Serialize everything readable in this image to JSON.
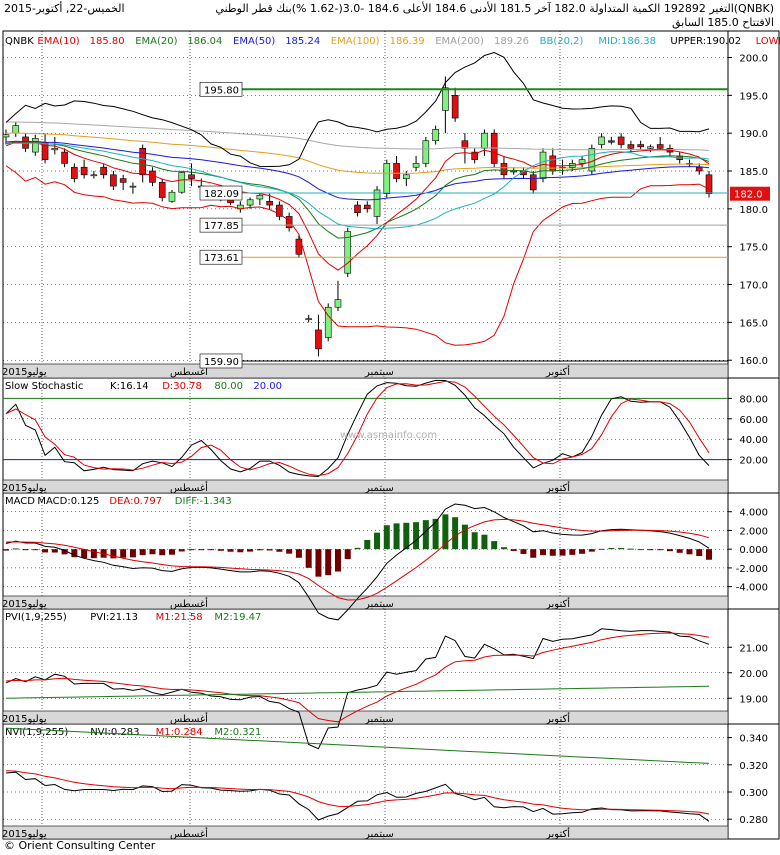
{
  "header": {
    "date": "الخميس-22, أكتوبر-2015",
    "stats": "التغير 192892 الكمية المتداولة 182.0 آخر 181.5 الأدنى 184.6 الأعلى 184.6 -3.0(-1.62 %)",
    "stock": "بنك قطر الوطني(QNBK)",
    "prev": "السابق",
    "open": "الافتتاح 185.0"
  },
  "legend_main": [
    {
      "text": "QNBK",
      "color": "#000000"
    },
    {
      "text": "EMA(10)",
      "color": "#e00000"
    },
    {
      "text": "185.80",
      "color": "#e00000"
    },
    {
      "text": "EMA(20)",
      "color": "#1a7a1a"
    },
    {
      "text": "186.04",
      "color": "#1a7a1a"
    },
    {
      "text": "EMA(50)",
      "color": "#1a1adc"
    },
    {
      "text": "185.24",
      "color": "#1a1adc"
    },
    {
      "text": "EMA(100)",
      "color": "#e0a020"
    },
    {
      "text": "186.39",
      "color": "#e0a020"
    },
    {
      "text": "EMA(200)",
      "color": "#a0a0a0"
    },
    {
      "text": "189.26",
      "color": "#a0a0a0"
    },
    {
      "text": "BB(20,2)",
      "color": "#20b0c0"
    },
    {
      "text": "MID:186.38",
      "color": "#20b0c0"
    },
    {
      "text": "UPPER:190.02",
      "color": "#000000"
    },
    {
      "text": "LOWER:",
      "color": "#e00000"
    }
  ],
  "legend_stoch": [
    {
      "text": "Slow Stochastic",
      "color": "#000000"
    },
    {
      "text": "K:16.14",
      "color": "#000000"
    },
    {
      "text": "D:30.78",
      "color": "#e00000"
    },
    {
      "text": "80.00",
      "color": "#1a7a1a"
    },
    {
      "text": "20.00",
      "color": "#1a1adc"
    }
  ],
  "legend_macd": [
    {
      "text": "MACD",
      "color": "#000000"
    },
    {
      "text": "MACD:0.125",
      "color": "#000000"
    },
    {
      "text": "DEA:0.797",
      "color": "#e00000"
    },
    {
      "text": "DIFF:-1.343",
      "color": "#1a7a1a"
    }
  ],
  "legend_pvi": [
    {
      "text": "PVI(1,9,255)",
      "color": "#000000"
    },
    {
      "text": "PVI:21.13",
      "color": "#000000"
    },
    {
      "text": "M1:21.58",
      "color": "#e00000"
    },
    {
      "text": "M2:19.47",
      "color": "#1a7a1a"
    }
  ],
  "legend_nvi": [
    {
      "text": "NVI(1,9,255)",
      "color": "#000000"
    },
    {
      "text": "NVI:0.283",
      "color": "#000000"
    },
    {
      "text": "M1:0.284",
      "color": "#e00000"
    },
    {
      "text": "M2:0.321",
      "color": "#1a7a1a"
    }
  ],
  "watermark": "www.asmainfo.com",
  "footer": "© Orient Consulting Center",
  "chart_data": {
    "type": "candlestick",
    "x_labels": [
      "يوليو2015",
      "أغسطس",
      "سبتمبر",
      "أكتوبر"
    ],
    "main": {
      "ylim": [
        159.5,
        203.5
      ],
      "yticks": [
        160.0,
        165.0,
        170.0,
        175.0,
        180.0,
        185.0,
        190.0,
        195.0,
        200.0
      ],
      "last_price": "182.0",
      "levels": [
        {
          "label": "195.80",
          "value": 195.8,
          "color": "#1a8a1a"
        },
        {
          "label": "182.09",
          "value": 182.09,
          "color": "#20b0c0"
        },
        {
          "label": "177.85",
          "value": 177.85,
          "color": "#a0a0a0"
        },
        {
          "label": "173.61",
          "value": 173.61,
          "color": "#e0a020"
        },
        {
          "label": "159.90",
          "value": 159.9,
          "color": "#000000"
        }
      ],
      "candles": [
        [
          189.5,
          190.5,
          188.5,
          189.8
        ],
        [
          190.0,
          191.5,
          189.5,
          191.0
        ],
        [
          189.5,
          190.0,
          187.5,
          188.0
        ],
        [
          187.5,
          189.8,
          187.0,
          189.3
        ],
        [
          188.8,
          190.0,
          186.0,
          186.5
        ],
        [
          187.8,
          189.5,
          187.2,
          188.0
        ],
        [
          187.5,
          188.0,
          185.5,
          186.0
        ],
        [
          185.5,
          186.0,
          183.5,
          184.0
        ],
        [
          185.5,
          186.5,
          184.0,
          184.5
        ],
        [
          184.5,
          185.0,
          184.0,
          184.5
        ],
        [
          185.5,
          186.0,
          184.0,
          184.5
        ],
        [
          184.5,
          185.0,
          182.5,
          183.0
        ],
        [
          184.0,
          184.5,
          182.5,
          183.5
        ],
        [
          183.0,
          183.5,
          182.0,
          183.0
        ],
        [
          188.0,
          188.5,
          183.5,
          184.5
        ],
        [
          185.0,
          185.5,
          183.0,
          183.5
        ],
        [
          183.5,
          184.0,
          181.0,
          181.5
        ],
        [
          181.0,
          182.5,
          180.8,
          182.2
        ],
        [
          182.2,
          185.0,
          182.0,
          184.8
        ],
        [
          184.5,
          186.0,
          183.0,
          184.0
        ],
        [
          183.0,
          184.0,
          182.0,
          183.0
        ],
        [
          182.5,
          183.0,
          182.0,
          182.3
        ],
        [
          182.5,
          183.0,
          181.0,
          181.5
        ],
        [
          181.5,
          182.0,
          180.5,
          180.8
        ],
        [
          180.0,
          181.0,
          179.5,
          180.5
        ],
        [
          180.5,
          181.5,
          180.0,
          181.2
        ],
        [
          181.3,
          182.0,
          180.5,
          181.8
        ],
        [
          181.0,
          182.0,
          180.0,
          180.5
        ],
        [
          180.5,
          181.0,
          178.5,
          179.0
        ],
        [
          179.0,
          179.5,
          177.0,
          177.5
        ],
        [
          176.0,
          176.5,
          173.5,
          174.0
        ],
        [
          165.5,
          166.0,
          165.0,
          165.5
        ],
        [
          164.0,
          166.0,
          160.5,
          161.5
        ],
        [
          163.0,
          167.5,
          162.5,
          167.0
        ],
        [
          167.0,
          170.5,
          166.5,
          168.0
        ],
        [
          171.5,
          177.5,
          171.0,
          177.0
        ],
        [
          180.5,
          181.0,
          179.0,
          179.5
        ],
        [
          180.5,
          181.0,
          179.5,
          180.0
        ],
        [
          179.0,
          183.0,
          178.0,
          182.5
        ],
        [
          182.0,
          186.5,
          181.5,
          186.0
        ],
        [
          186.0,
          187.0,
          183.5,
          184.0
        ],
        [
          184.0,
          185.0,
          183.0,
          184.5
        ],
        [
          185.5,
          187.0,
          185.0,
          186.0
        ],
        [
          186.0,
          189.5,
          185.5,
          189.0
        ],
        [
          189.0,
          191.0,
          188.5,
          190.5
        ],
        [
          193.0,
          197.5,
          190.0,
          196.0
        ],
        [
          195.0,
          196.0,
          191.5,
          192.0
        ],
        [
          189.0,
          190.0,
          186.0,
          188.0
        ],
        [
          187.5,
          188.0,
          186.0,
          186.5
        ],
        [
          188.0,
          190.5,
          187.0,
          190.0
        ],
        [
          190.0,
          190.5,
          185.5,
          186.0
        ],
        [
          186.0,
          187.0,
          184.0,
          184.5
        ],
        [
          185.0,
          185.5,
          184.5,
          185.0
        ],
        [
          185.0,
          185.5,
          184.0,
          184.5
        ],
        [
          184.5,
          185.0,
          182.0,
          182.5
        ],
        [
          184.0,
          188.0,
          183.5,
          187.5
        ],
        [
          187.0,
          188.0,
          184.5,
          185.0
        ],
        [
          185.5,
          186.5,
          184.5,
          185.5
        ],
        [
          185.5,
          186.5,
          185.0,
          186.0
        ],
        [
          186.0,
          187.0,
          185.5,
          186.5
        ],
        [
          185.0,
          188.5,
          184.5,
          188.0
        ],
        [
          188.5,
          190.0,
          188.0,
          189.5
        ],
        [
          189.0,
          189.5,
          188.5,
          188.8
        ],
        [
          189.5,
          190.0,
          188.0,
          188.5
        ],
        [
          188.5,
          189.0,
          187.5,
          188.0
        ],
        [
          188.5,
          189.0,
          187.8,
          188.2
        ],
        [
          188.0,
          188.5,
          187.5,
          188.2
        ],
        [
          188.5,
          189.5,
          187.8,
          188.0
        ],
        [
          188.0,
          188.5,
          187.0,
          187.5
        ],
        [
          187.0,
          187.5,
          186.0,
          186.5
        ],
        [
          186.0,
          186.5,
          185.5,
          186.0
        ],
        [
          185.5,
          186.0,
          184.5,
          185.0
        ],
        [
          184.5,
          185.0,
          181.5,
          182.0
        ]
      ]
    },
    "stochastic": {
      "ylim": [
        0,
        100
      ],
      "yticks": [
        20.0,
        40.0,
        60.0,
        80.0
      ],
      "levels": [
        80,
        20
      ]
    },
    "macd": {
      "ylim": [
        -5,
        6
      ],
      "yticks": [
        -4.0,
        -2.0,
        0.0,
        2.0,
        4.0
      ]
    },
    "pvi": {
      "ylim": [
        18.5,
        22.5
      ],
      "yticks": [
        19.0,
        20.0,
        21.0
      ]
    },
    "nvi": {
      "ylim": [
        0.275,
        0.35
      ],
      "yticks": [
        0.28,
        0.3,
        0.32,
        0.34
      ]
    }
  }
}
